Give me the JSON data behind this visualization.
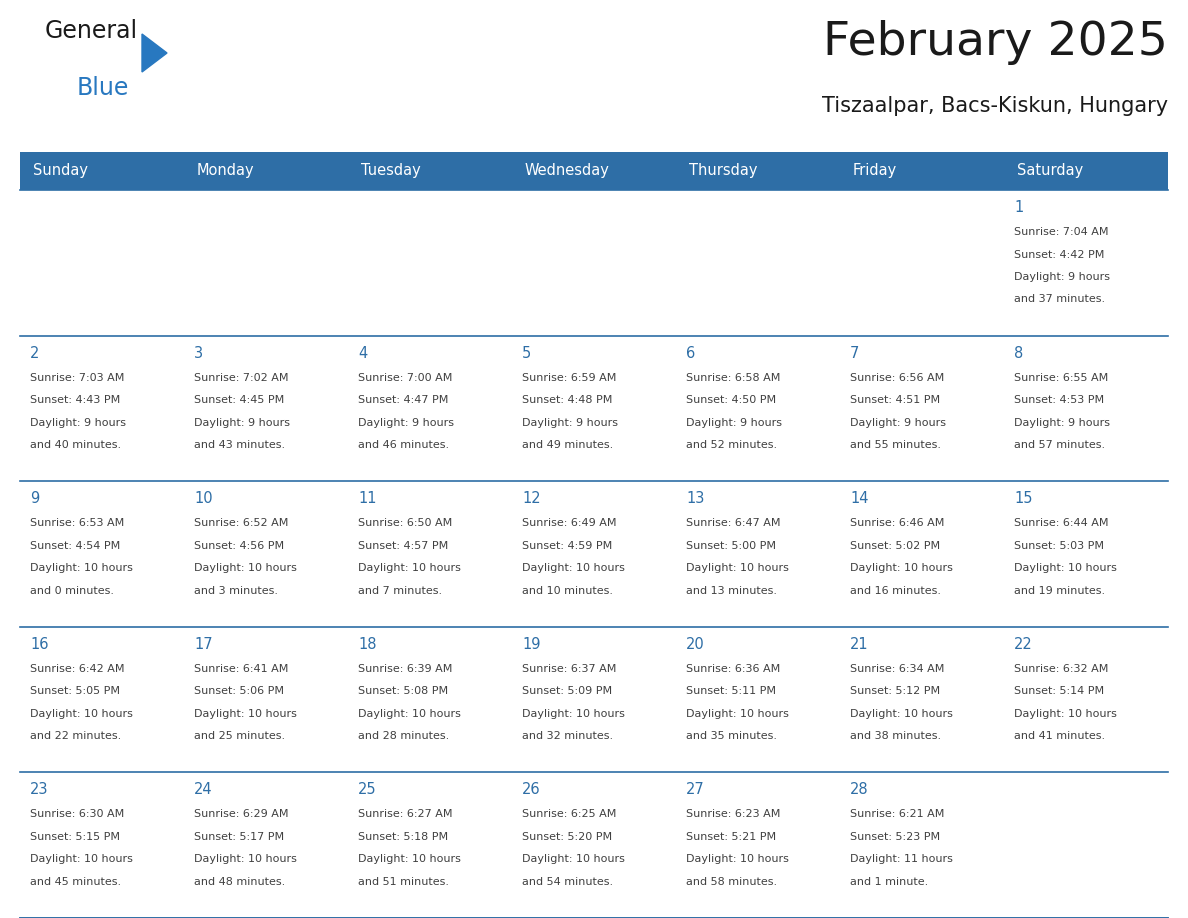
{
  "title": "February 2025",
  "subtitle": "Tiszaalpar, Bacs-Kiskun, Hungary",
  "header_bg": "#2E6EA6",
  "header_text": "#FFFFFF",
  "cell_bg": "#FFFFFF",
  "cell_bg_alt": "#F0F0F0",
  "day_headers": [
    "Sunday",
    "Monday",
    "Tuesday",
    "Wednesday",
    "Thursday",
    "Friday",
    "Saturday"
  ],
  "title_color": "#1a1a1a",
  "subtitle_color": "#1a1a1a",
  "day_number_color": "#2E6EA6",
  "cell_text_color": "#404040",
  "line_color": "#2E6EA6",
  "logo_black": "#1a1a1a",
  "logo_blue": "#2878C0",
  "tri_color": "#2878C0",
  "calendar": [
    [
      null,
      null,
      null,
      null,
      null,
      null,
      {
        "day": 1,
        "sunrise": "7:04 AM",
        "sunset": "4:42 PM",
        "daylight": "9 hours and 37 minutes."
      }
    ],
    [
      {
        "day": 2,
        "sunrise": "7:03 AM",
        "sunset": "4:43 PM",
        "daylight": "9 hours and 40 minutes."
      },
      {
        "day": 3,
        "sunrise": "7:02 AM",
        "sunset": "4:45 PM",
        "daylight": "9 hours and 43 minutes."
      },
      {
        "day": 4,
        "sunrise": "7:00 AM",
        "sunset": "4:47 PM",
        "daylight": "9 hours and 46 minutes."
      },
      {
        "day": 5,
        "sunrise": "6:59 AM",
        "sunset": "4:48 PM",
        "daylight": "9 hours and 49 minutes."
      },
      {
        "day": 6,
        "sunrise": "6:58 AM",
        "sunset": "4:50 PM",
        "daylight": "9 hours and 52 minutes."
      },
      {
        "day": 7,
        "sunrise": "6:56 AM",
        "sunset": "4:51 PM",
        "daylight": "9 hours and 55 minutes."
      },
      {
        "day": 8,
        "sunrise": "6:55 AM",
        "sunset": "4:53 PM",
        "daylight": "9 hours and 57 minutes."
      }
    ],
    [
      {
        "day": 9,
        "sunrise": "6:53 AM",
        "sunset": "4:54 PM",
        "daylight": "10 hours and 0 minutes."
      },
      {
        "day": 10,
        "sunrise": "6:52 AM",
        "sunset": "4:56 PM",
        "daylight": "10 hours and 3 minutes."
      },
      {
        "day": 11,
        "sunrise": "6:50 AM",
        "sunset": "4:57 PM",
        "daylight": "10 hours and 7 minutes."
      },
      {
        "day": 12,
        "sunrise": "6:49 AM",
        "sunset": "4:59 PM",
        "daylight": "10 hours and 10 minutes."
      },
      {
        "day": 13,
        "sunrise": "6:47 AM",
        "sunset": "5:00 PM",
        "daylight": "10 hours and 13 minutes."
      },
      {
        "day": 14,
        "sunrise": "6:46 AM",
        "sunset": "5:02 PM",
        "daylight": "10 hours and 16 minutes."
      },
      {
        "day": 15,
        "sunrise": "6:44 AM",
        "sunset": "5:03 PM",
        "daylight": "10 hours and 19 minutes."
      }
    ],
    [
      {
        "day": 16,
        "sunrise": "6:42 AM",
        "sunset": "5:05 PM",
        "daylight": "10 hours and 22 minutes."
      },
      {
        "day": 17,
        "sunrise": "6:41 AM",
        "sunset": "5:06 PM",
        "daylight": "10 hours and 25 minutes."
      },
      {
        "day": 18,
        "sunrise": "6:39 AM",
        "sunset": "5:08 PM",
        "daylight": "10 hours and 28 minutes."
      },
      {
        "day": 19,
        "sunrise": "6:37 AM",
        "sunset": "5:09 PM",
        "daylight": "10 hours and 32 minutes."
      },
      {
        "day": 20,
        "sunrise": "6:36 AM",
        "sunset": "5:11 PM",
        "daylight": "10 hours and 35 minutes."
      },
      {
        "day": 21,
        "sunrise": "6:34 AM",
        "sunset": "5:12 PM",
        "daylight": "10 hours and 38 minutes."
      },
      {
        "day": 22,
        "sunrise": "6:32 AM",
        "sunset": "5:14 PM",
        "daylight": "10 hours and 41 minutes."
      }
    ],
    [
      {
        "day": 23,
        "sunrise": "6:30 AM",
        "sunset": "5:15 PM",
        "daylight": "10 hours and 45 minutes."
      },
      {
        "day": 24,
        "sunrise": "6:29 AM",
        "sunset": "5:17 PM",
        "daylight": "10 hours and 48 minutes."
      },
      {
        "day": 25,
        "sunrise": "6:27 AM",
        "sunset": "5:18 PM",
        "daylight": "10 hours and 51 minutes."
      },
      {
        "day": 26,
        "sunrise": "6:25 AM",
        "sunset": "5:20 PM",
        "daylight": "10 hours and 54 minutes."
      },
      {
        "day": 27,
        "sunrise": "6:23 AM",
        "sunset": "5:21 PM",
        "daylight": "10 hours and 58 minutes."
      },
      {
        "day": 28,
        "sunrise": "6:21 AM",
        "sunset": "5:23 PM",
        "daylight": "11 hours and 1 minute."
      },
      null
    ]
  ]
}
